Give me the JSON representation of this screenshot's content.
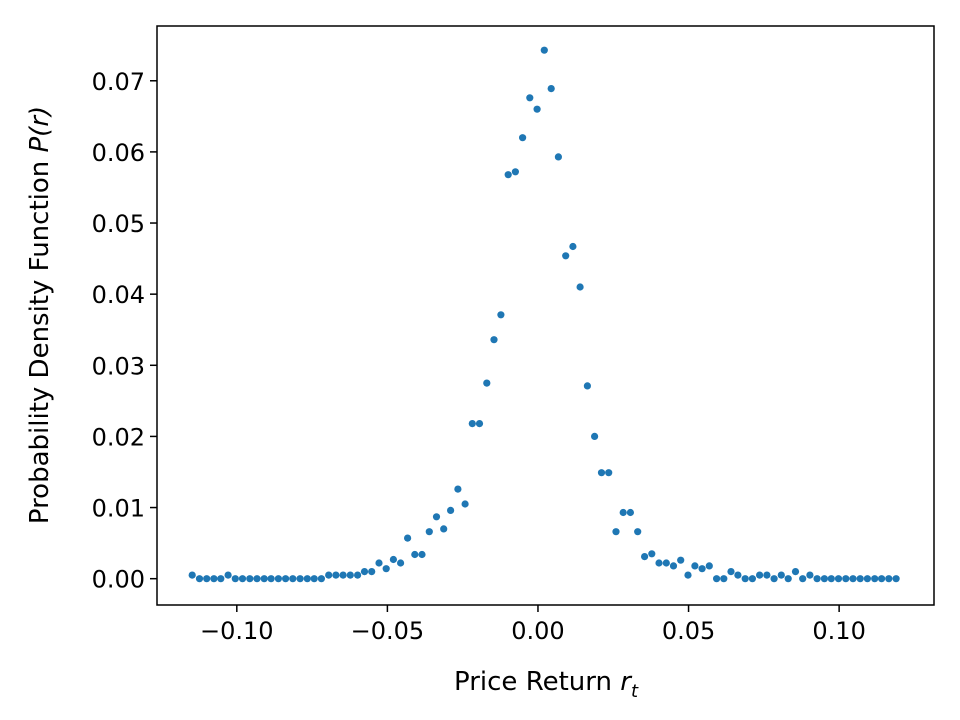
{
  "chart_data": {
    "type": "scatter",
    "title": "",
    "xlabel": "Price Return",
    "xlabel_var": "r",
    "xlabel_sub": "t",
    "ylabel": "Probability Density Function",
    "ylabel_var": "P(r)",
    "xlim": [
      -0.1265,
      0.1315
    ],
    "ylim": [
      -0.0037,
      0.0777
    ],
    "xticks": [
      -0.1,
      -0.05,
      0.0,
      0.05,
      0.1
    ],
    "xtick_labels": [
      "−0.10",
      "−0.05",
      "0.00",
      "0.05",
      "0.10"
    ],
    "yticks": [
      0.0,
      0.01,
      0.02,
      0.03,
      0.04,
      0.05,
      0.06,
      0.07
    ],
    "ytick_labels": [
      "0.00",
      "0.01",
      "0.02",
      "0.03",
      "0.04",
      "0.05",
      "0.06",
      "0.07"
    ],
    "grid": false,
    "marker_color": "#1f77b4",
    "series": [
      {
        "points": [
          [
            -0.1148,
            0.0005
          ],
          [
            -0.1124,
            0.0
          ],
          [
            -0.11,
            0.0
          ],
          [
            -0.1076,
            0.0
          ],
          [
            -0.1053,
            0.0
          ],
          [
            -0.1029,
            0.0005
          ],
          [
            -0.1005,
            0.0
          ],
          [
            -0.0981,
            0.0
          ],
          [
            -0.0957,
            0.0
          ],
          [
            -0.0933,
            0.0
          ],
          [
            -0.0909,
            0.0
          ],
          [
            -0.0886,
            0.0
          ],
          [
            -0.0862,
            0.0
          ],
          [
            -0.0838,
            0.0
          ],
          [
            -0.0814,
            0.0
          ],
          [
            -0.079,
            0.0
          ],
          [
            -0.0766,
            0.0
          ],
          [
            -0.0743,
            0.0
          ],
          [
            -0.0719,
            0.0
          ],
          [
            -0.0695,
            0.0005
          ],
          [
            -0.0671,
            0.0005
          ],
          [
            -0.0647,
            0.0005
          ],
          [
            -0.0623,
            0.0005
          ],
          [
            -0.0599,
            0.0005
          ],
          [
            -0.0576,
            0.001
          ],
          [
            -0.0552,
            0.001
          ],
          [
            -0.0528,
            0.0022
          ],
          [
            -0.0504,
            0.0014
          ],
          [
            -0.048,
            0.0027
          ],
          [
            -0.0456,
            0.0022
          ],
          [
            -0.0433,
            0.0057
          ],
          [
            -0.0409,
            0.0034
          ],
          [
            -0.0385,
            0.0034
          ],
          [
            -0.0361,
            0.0066
          ],
          [
            -0.0337,
            0.0087
          ],
          [
            -0.0313,
            0.007
          ],
          [
            -0.029,
            0.0096
          ],
          [
            -0.0266,
            0.0126
          ],
          [
            -0.0242,
            0.0105
          ],
          [
            -0.0218,
            0.0218
          ],
          [
            -0.0194,
            0.0218
          ],
          [
            -0.017,
            0.0275
          ],
          [
            -0.0146,
            0.0336
          ],
          [
            -0.0123,
            0.0371
          ],
          [
            -0.0099,
            0.0568
          ],
          [
            -0.0075,
            0.0572
          ],
          [
            -0.0051,
            0.062
          ],
          [
            -0.0027,
            0.0676
          ],
          [
            -0.0003,
            0.066
          ],
          [
            0.0021,
            0.0743
          ],
          [
            0.0044,
            0.0689
          ],
          [
            0.0068,
            0.0593
          ],
          [
            0.0092,
            0.0454
          ],
          [
            0.0116,
            0.0467
          ],
          [
            0.014,
            0.041
          ],
          [
            0.0164,
            0.0271
          ],
          [
            0.0188,
            0.02
          ],
          [
            0.0211,
            0.0149
          ],
          [
            0.0235,
            0.0149
          ],
          [
            0.0259,
            0.0066
          ],
          [
            0.0283,
            0.0093
          ],
          [
            0.0307,
            0.0093
          ],
          [
            0.0331,
            0.0066
          ],
          [
            0.0354,
            0.0031
          ],
          [
            0.0378,
            0.0035
          ],
          [
            0.0402,
            0.0022
          ],
          [
            0.0426,
            0.0022
          ],
          [
            0.045,
            0.0018
          ],
          [
            0.0474,
            0.0026
          ],
          [
            0.0498,
            0.0005
          ],
          [
            0.0521,
            0.0018
          ],
          [
            0.0545,
            0.0014
          ],
          [
            0.0569,
            0.0018
          ],
          [
            0.0593,
            0.0
          ],
          [
            0.0617,
            0.0
          ],
          [
            0.0641,
            0.001
          ],
          [
            0.0664,
            0.0005
          ],
          [
            0.0688,
            0.0
          ],
          [
            0.0712,
            0.0
          ],
          [
            0.0736,
            0.0005
          ],
          [
            0.076,
            0.0005
          ],
          [
            0.0784,
            0.0
          ],
          [
            0.0808,
            0.0005
          ],
          [
            0.0831,
            0.0
          ],
          [
            0.0855,
            0.001
          ],
          [
            0.0879,
            0.0
          ],
          [
            0.0903,
            0.0005
          ],
          [
            0.0927,
            0.0
          ],
          [
            0.0951,
            0.0
          ],
          [
            0.0974,
            0.0
          ],
          [
            0.0998,
            0.0
          ],
          [
            0.1022,
            0.0
          ],
          [
            0.1046,
            0.0
          ],
          [
            0.107,
            0.0
          ],
          [
            0.1094,
            0.0
          ],
          [
            0.1118,
            0.0
          ],
          [
            0.1141,
            0.0
          ],
          [
            0.1165,
            0.0
          ],
          [
            0.1189,
            0.0
          ]
        ]
      }
    ]
  }
}
